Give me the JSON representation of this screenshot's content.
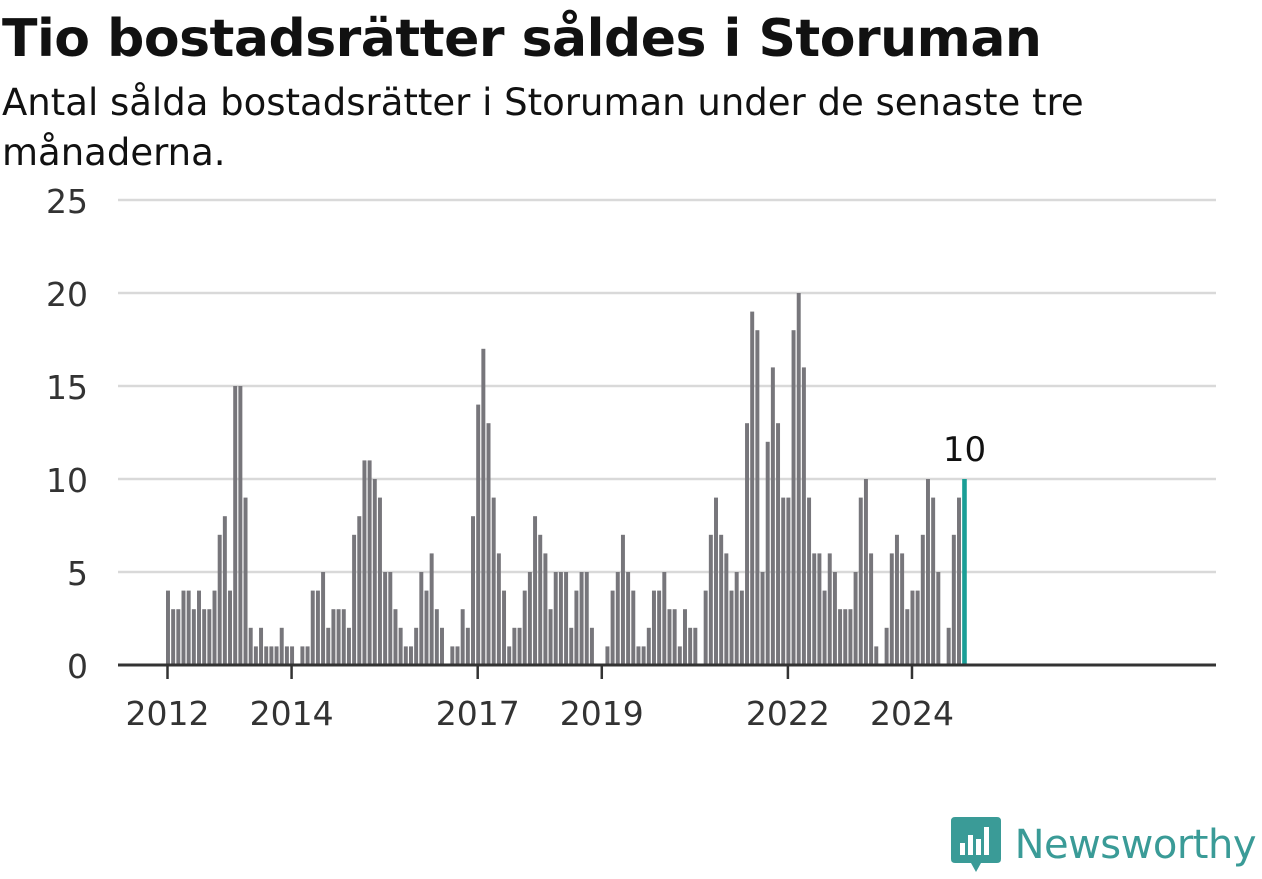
{
  "title": "Tio bostadsrätter såldes i Storuman",
  "subtitle": "Antal sålda bostadsrätter i Storuman under de senaste tre månaderna.",
  "brand": {
    "name": "Newsworthy",
    "color": "#3a9b97",
    "icon": "newsworthy-chart-bubble-icon"
  },
  "colors": {
    "bar": "#77767b",
    "highlight": "#1a9e96",
    "grid": "#d9d9d9",
    "axis": "#333333"
  },
  "chart_data": {
    "type": "bar",
    "title": "Tio bostadsrätter såldes i Storuman",
    "xlabel": "",
    "ylabel": "",
    "ylim": [
      0,
      25
    ],
    "yticks": [
      0,
      5,
      10,
      15,
      20,
      25
    ],
    "grid": true,
    "x_tick_labels": [
      "2012",
      "2014",
      "2017",
      "2019",
      "2022",
      "2024"
    ],
    "start": "2012-01",
    "end": "2024-12",
    "highlight_label": "10",
    "values": [
      4,
      3,
      3,
      4,
      4,
      3,
      4,
      3,
      3,
      4,
      7,
      8,
      4,
      15,
      15,
      9,
      2,
      1,
      2,
      1,
      1,
      1,
      2,
      1,
      1,
      0,
      1,
      1,
      4,
      4,
      5,
      2,
      3,
      3,
      3,
      2,
      7,
      8,
      11,
      11,
      10,
      9,
      5,
      5,
      3,
      2,
      1,
      1,
      2,
      5,
      4,
      6,
      3,
      2,
      0,
      1,
      1,
      3,
      2,
      8,
      14,
      17,
      13,
      9,
      6,
      4,
      1,
      2,
      2,
      4,
      5,
      8,
      7,
      6,
      3,
      5,
      5,
      5,
      2,
      4,
      5,
      5,
      2,
      0,
      0,
      1,
      4,
      5,
      7,
      5,
      4,
      1,
      1,
      2,
      4,
      4,
      5,
      3,
      3,
      1,
      3,
      2,
      2,
      0,
      4,
      7,
      9,
      7,
      6,
      4,
      5,
      4,
      13,
      19,
      18,
      5,
      12,
      16,
      13,
      9,
      9,
      18,
      20,
      16,
      9,
      6,
      6,
      4,
      6,
      5,
      3,
      3,
      3,
      5,
      9,
      10,
      6,
      1,
      0,
      2,
      6,
      7,
      6,
      3,
      4,
      4,
      7,
      10,
      9,
      5,
      0,
      2,
      7,
      9,
      10
    ]
  }
}
